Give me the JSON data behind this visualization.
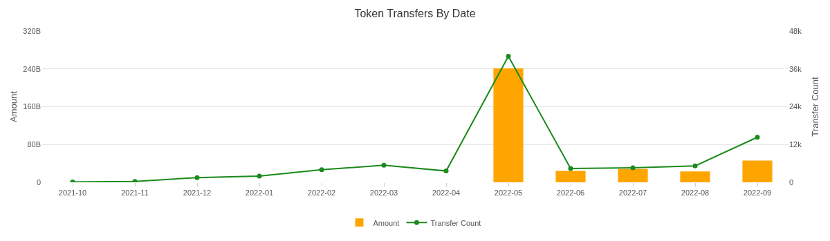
{
  "chart_data": {
    "type": "bar",
    "title": "Token Transfers By Date",
    "ylabel": "Amount",
    "y2label": "Transfer Count",
    "categories": [
      "2021-10",
      "2021-11",
      "2021-12",
      "2022-01",
      "2022-02",
      "2022-03",
      "2022-04",
      "2022-05",
      "2022-06",
      "2022-07",
      "2022-08",
      "2022-09"
    ],
    "series": [
      {
        "name": "Amount",
        "color": "#ffa500",
        "values": [
          0,
          0,
          0,
          0,
          0,
          0,
          0,
          241,
          24,
          28,
          23,
          46
        ]
      },
      {
        "name": "Transfer Count",
        "type": "line",
        "axis": "y2",
        "color": "#1a8a1a",
        "marker": "circle",
        "values": [
          0.1,
          0.3,
          1.5,
          2,
          4,
          5.4,
          3.6,
          40,
          4.4,
          4.6,
          5.2,
          14.3
        ]
      }
    ],
    "ylim": [
      0,
      320
    ],
    "yticks": [
      {
        "value": 0,
        "label": "0"
      },
      {
        "value": 80,
        "label": "80B"
      },
      {
        "value": 160,
        "label": "160B"
      },
      {
        "value": 240,
        "label": "240B"
      },
      {
        "value": 320,
        "label": "320B"
      }
    ],
    "y2lim": [
      0,
      48
    ],
    "y2ticks": [
      {
        "value": 0,
        "label": "0"
      },
      {
        "value": 12,
        "label": "12k"
      },
      {
        "value": 24,
        "label": "24k"
      },
      {
        "value": 36,
        "label": "36k"
      },
      {
        "value": 48,
        "label": "48k"
      }
    ],
    "grid": "y",
    "legend": "bottom"
  }
}
